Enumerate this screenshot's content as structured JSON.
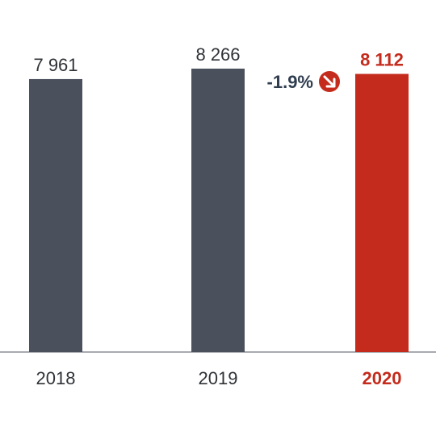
{
  "chart_data": {
    "type": "bar",
    "categories": [
      "2018",
      "2019",
      "2020"
    ],
    "values": [
      7961,
      8266,
      8112
    ],
    "value_labels": [
      "7 961",
      "8 266",
      "8 112"
    ],
    "highlight_index": 2,
    "ylim": [
      0,
      8266
    ],
    "change": {
      "label": "-1.9%",
      "direction": "down",
      "icon": "arrow-down-right-icon"
    },
    "colors": {
      "bar": "#4b515c",
      "highlight": "#c42b1c",
      "text": "#2f3337",
      "axis": "#8a8f96"
    },
    "grid": false
  }
}
